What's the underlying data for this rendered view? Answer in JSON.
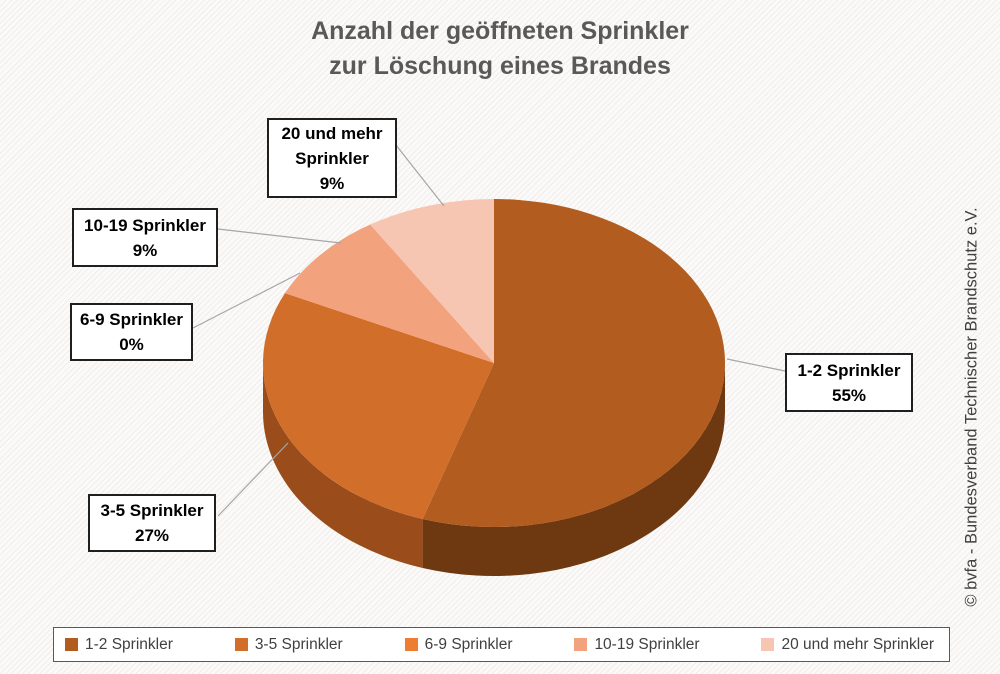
{
  "title": {
    "line1": "Anzahl der geöffneten Sprinkler",
    "line2": "zur Löschung eines Brandes"
  },
  "copyright_vertical": "© bvfa - Bundesverband Technischer Brandschutz e.V.",
  "chart_data": {
    "type": "pie",
    "style": "3d",
    "title": "Anzahl der geöffneten Sprinkler zur Löschung eines Brandes",
    "categories": [
      "1-2 Sprinkler",
      "3-5 Sprinkler",
      "6-9 Sprinkler",
      "10-19 Sprinkler",
      "20 und mehr Sprinkler"
    ],
    "values": [
      55,
      27,
      0,
      9,
      9
    ],
    "unit": "%",
    "start_angle_deg": 0,
    "direction": "clockwise",
    "colors": [
      "#B25C20",
      "#D06E2A",
      "#ED7D31",
      "#F3A27E",
      "#F7C6B3"
    ],
    "side_colors": [
      "#6E3810",
      "#9A4C1B",
      "#C05F1F",
      "#C87E57",
      "#CC9786"
    ],
    "legend_position": "bottom",
    "labels_style": "callout-boxes"
  },
  "callouts": [
    {
      "slice": "20 und mehr Sprinkler",
      "lines": [
        "20 und mehr",
        "Sprinkler",
        "9%"
      ]
    },
    {
      "slice": "10-19 Sprinkler",
      "lines": [
        "10-19 Sprinkler",
        "9%"
      ]
    },
    {
      "slice": "6-9 Sprinkler",
      "lines": [
        "6-9 Sprinkler",
        "0%"
      ]
    },
    {
      "slice": "1-2 Sprinkler",
      "lines": [
        "1-2 Sprinkler",
        "55%"
      ]
    },
    {
      "slice": "3-5 Sprinkler",
      "lines": [
        "3-5 Sprinkler",
        "27%"
      ]
    }
  ]
}
